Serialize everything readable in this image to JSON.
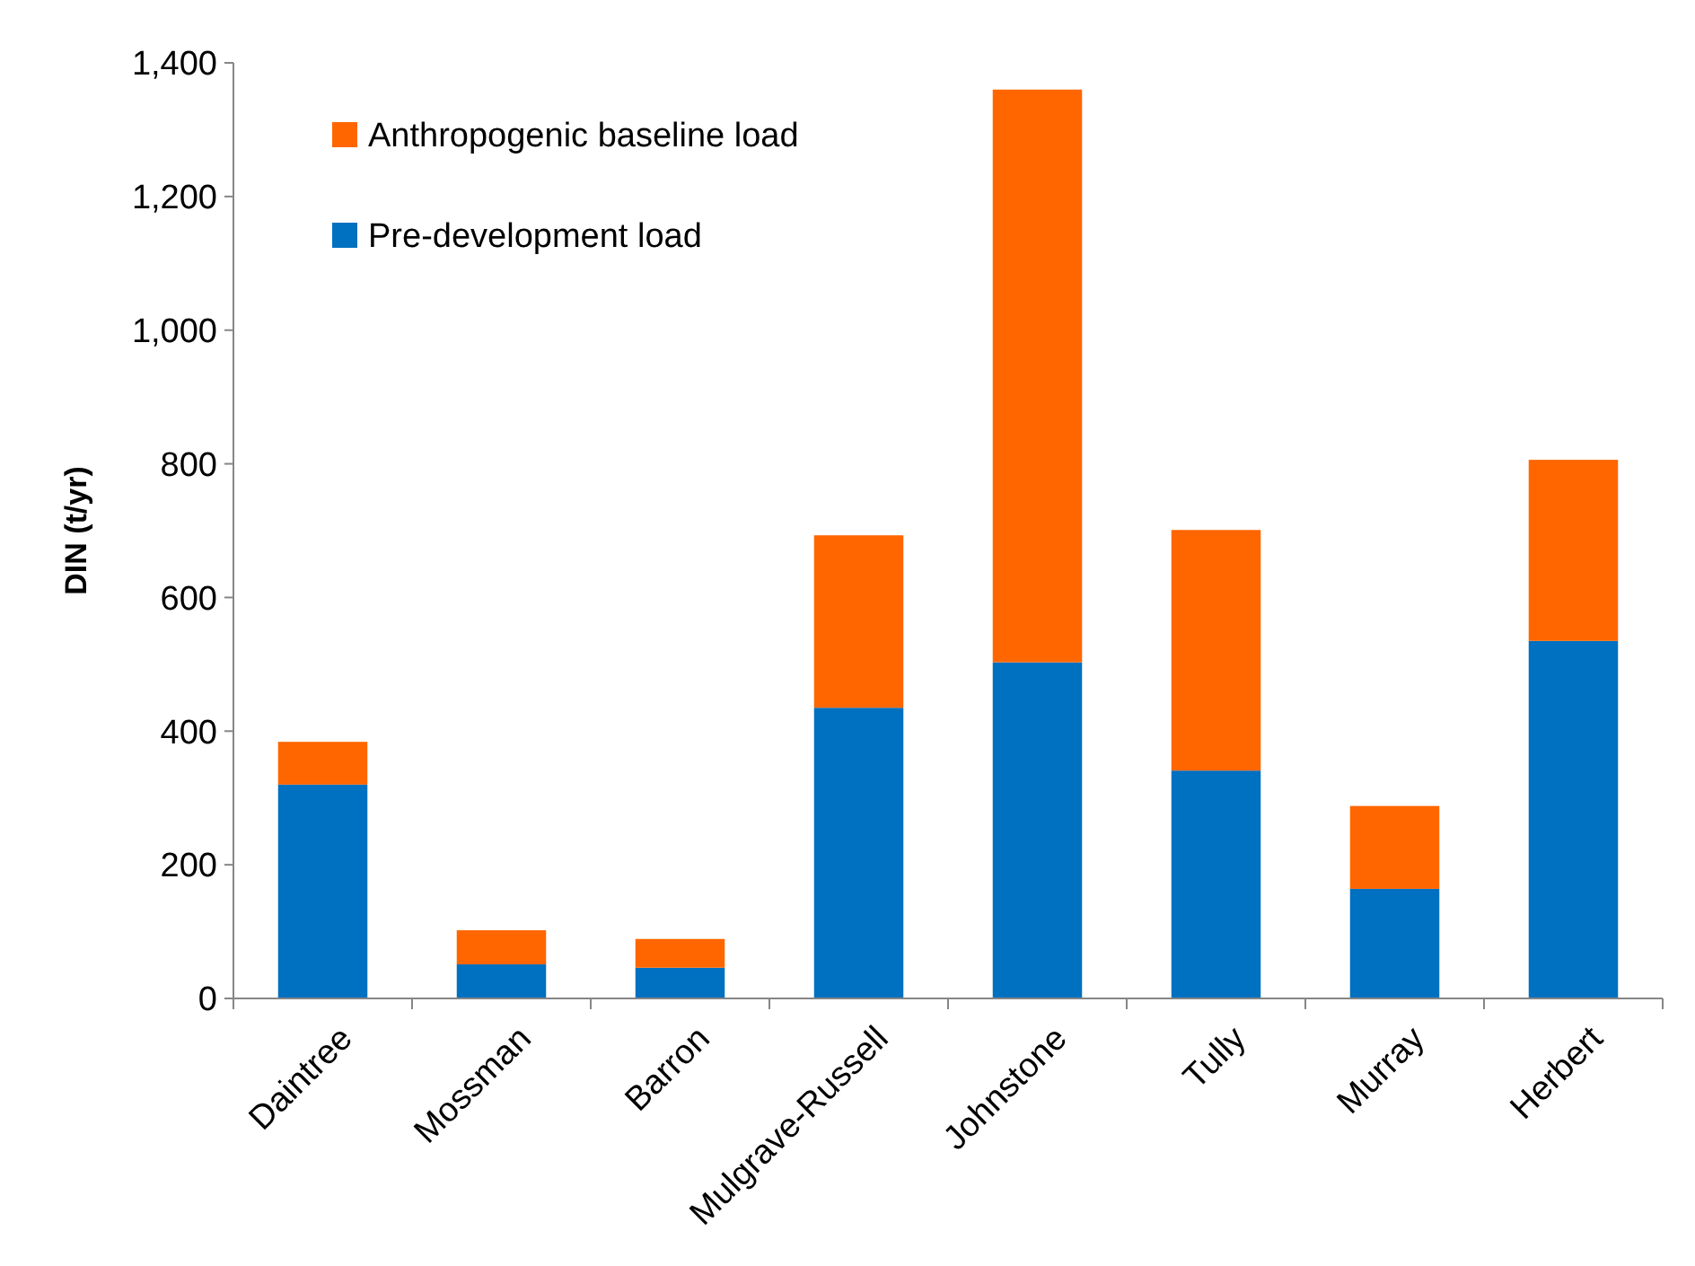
{
  "chart_data": {
    "type": "bar",
    "stacked": true,
    "ylabel": "DIN (t/yr)",
    "categories": [
      "Daintree",
      "Mossman",
      "Barron",
      "Mulgrave-Russell",
      "Johnstone",
      "Tully",
      "Murray",
      "Herbert"
    ],
    "series": [
      {
        "name": "Pre-development load",
        "color": "#0070c0",
        "values": [
          320,
          51,
          46,
          435,
          503,
          341,
          164,
          535
        ]
      },
      {
        "name": "Anthropogenic baseline load",
        "color": "#ff6600",
        "values": [
          64,
          51,
          43,
          258,
          857,
          360,
          124,
          271
        ]
      }
    ],
    "ylim": [
      0,
      1400
    ],
    "yticks": [
      {
        "value": 0,
        "label": "0"
      },
      {
        "value": 200,
        "label": "200"
      },
      {
        "value": 400,
        "label": "400"
      },
      {
        "value": 600,
        "label": "600"
      },
      {
        "value": 800,
        "label": "800"
      },
      {
        "value": 1000,
        "label": "1,000"
      },
      {
        "value": 1200,
        "label": "1,200"
      },
      {
        "value": 1400,
        "label": "1,400"
      }
    ],
    "grid": false,
    "legend": "top left"
  }
}
